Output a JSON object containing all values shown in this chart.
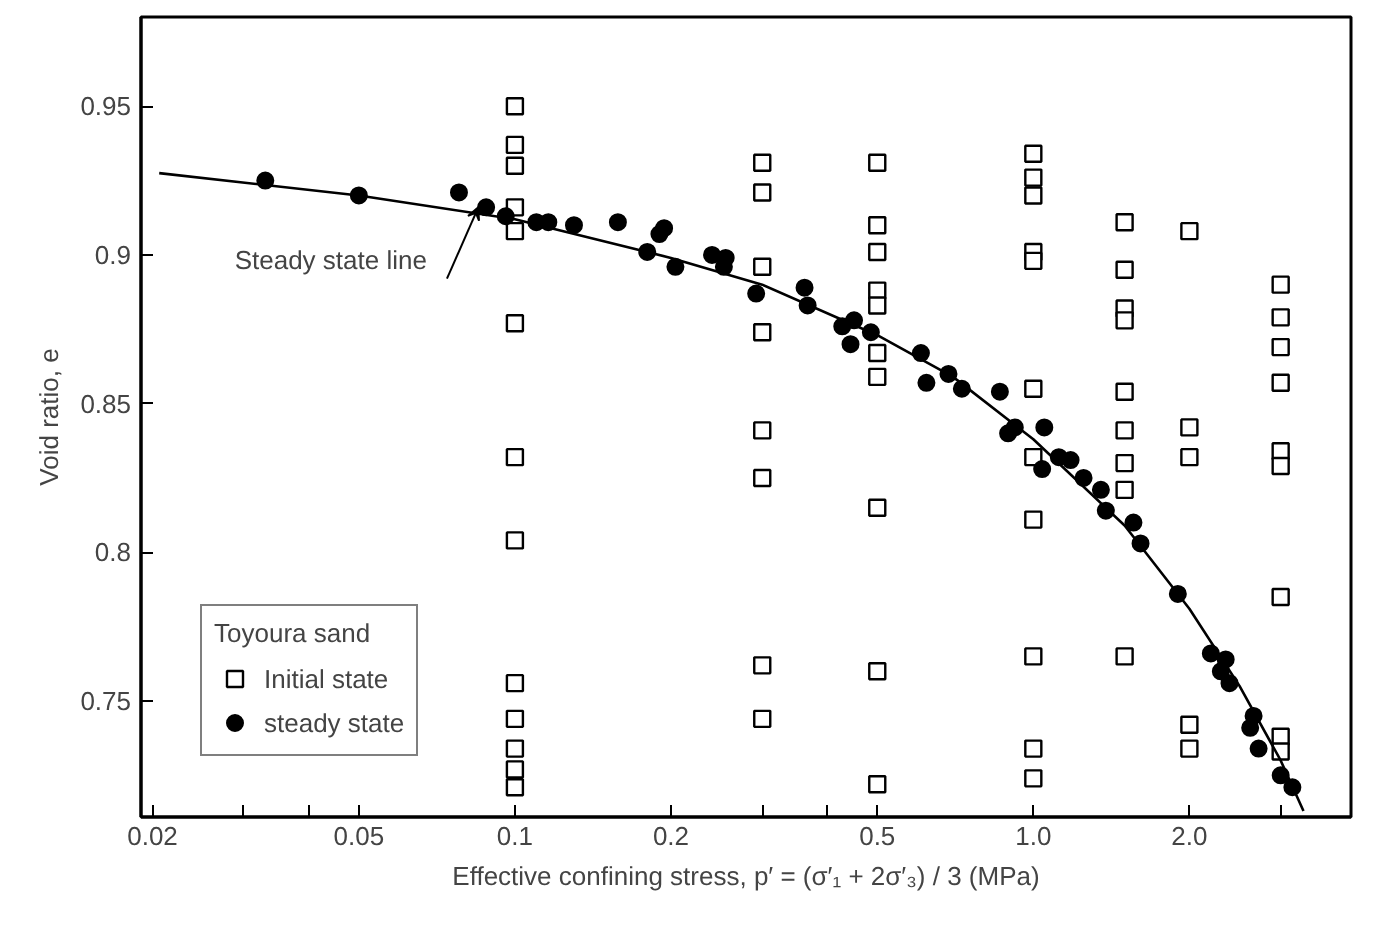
{
  "chart_data": {
    "type": "scatter",
    "xlabel": "Effective confining stress, p′ = (σ′₁ + 2σ′₃) / 3 (MPa)",
    "ylabel": "Void ratio, e",
    "legend_title": "Toyoura sand",
    "log": "x",
    "grid": false,
    "legend": "bottom left",
    "xlim": [
      0.019,
      4.1
    ],
    "ylim": [
      0.711,
      0.98
    ],
    "xticks": [
      0.02,
      {
        "value": 0.03,
        "label": null
      },
      {
        "value": 0.04,
        "label": null
      },
      0.05,
      0.1,
      0.2,
      {
        "value": 0.3,
        "label": null
      },
      {
        "value": 0.4,
        "label": null
      },
      0.5,
      {
        "value": 1,
        "label": "1.0"
      },
      {
        "value": 2,
        "label": "2.0"
      },
      {
        "value": 3,
        "label": null
      }
    ],
    "yticks": [
      0.75,
      0.8,
      0.85,
      0.9,
      0.95
    ],
    "annotations": [
      {
        "text": "Steady state line",
        "x": 0.085,
        "y": 0.916
      }
    ],
    "series": [
      {
        "name": "Initial state",
        "marker": "square",
        "color": "#000000",
        "x": [
          0.1,
          0.1,
          0.1,
          0.1,
          0.1,
          0.1,
          0.1,
          0.1,
          0.1,
          0.1,
          0.1,
          0.1,
          0.1,
          0.3,
          0.3,
          0.3,
          0.3,
          0.3,
          0.3,
          0.3,
          0.3,
          0.5,
          0.5,
          0.5,
          0.5,
          0.5,
          0.5,
          0.5,
          0.5,
          0.5,
          0.5,
          1,
          1,
          1,
          1,
          1,
          1,
          1,
          1,
          1,
          1,
          1,
          1.5,
          1.5,
          1.5,
          1.5,
          1.5,
          1.5,
          1.5,
          1.5,
          1.5,
          2,
          2,
          2,
          2,
          2,
          3,
          3,
          3,
          3,
          3,
          3,
          3,
          3,
          3
        ],
        "values": [
          0.95,
          0.937,
          0.93,
          0.916,
          0.908,
          0.877,
          0.832,
          0.804,
          0.756,
          0.744,
          0.734,
          0.727,
          0.721,
          0.931,
          0.921,
          0.896,
          0.874,
          0.841,
          0.825,
          0.762,
          0.744,
          0.931,
          0.91,
          0.901,
          0.888,
          0.883,
          0.867,
          0.859,
          0.815,
          0.76,
          0.722,
          0.934,
          0.926,
          0.92,
          0.901,
          0.898,
          0.855,
          0.832,
          0.811,
          0.765,
          0.734,
          0.724,
          0.911,
          0.895,
          0.882,
          0.878,
          0.854,
          0.841,
          0.83,
          0.821,
          0.765,
          0.908,
          0.842,
          0.832,
          0.742,
          0.734,
          0.89,
          0.879,
          0.869,
          0.857,
          0.834,
          0.829,
          0.785,
          0.738,
          0.733
        ]
      },
      {
        "name": "steady state",
        "marker": "circle",
        "color": "#000000",
        "x": [
          0.033,
          0.05,
          0.078,
          0.088,
          0.096,
          0.11,
          0.116,
          0.13,
          0.158,
          0.18,
          0.19,
          0.194,
          0.204,
          0.24,
          0.255,
          0.253,
          0.292,
          0.362,
          0.367,
          0.428,
          0.451,
          0.444,
          0.486,
          0.607,
          0.622,
          0.686,
          0.728,
          0.862,
          0.921,
          0.894,
          1.05,
          1.04,
          1.12,
          1.18,
          1.25,
          1.35,
          1.38,
          1.56,
          1.61,
          1.9,
          2.2,
          2.35,
          2.3,
          2.39,
          2.66,
          2.62,
          2.72,
          3.0,
          3.16
        ],
        "values": [
          0.925,
          0.92,
          0.921,
          0.916,
          0.913,
          0.911,
          0.911,
          0.91,
          0.911,
          0.901,
          0.907,
          0.909,
          0.896,
          0.9,
          0.899,
          0.896,
          0.887,
          0.889,
          0.883,
          0.876,
          0.878,
          0.87,
          0.874,
          0.867,
          0.857,
          0.86,
          0.855,
          0.854,
          0.842,
          0.84,
          0.842,
          0.828,
          0.832,
          0.831,
          0.825,
          0.821,
          0.814,
          0.81,
          0.803,
          0.786,
          0.766,
          0.764,
          0.76,
          0.756,
          0.745,
          0.741,
          0.734,
          0.725,
          0.721
        ]
      },
      {
        "type": "line",
        "color": "#000000",
        "line_style": "solid",
        "x": [
          0.0206,
          0.05,
          0.1,
          0.2,
          0.3,
          0.5,
          0.7,
          1.0,
          1.5,
          2.0,
          2.5,
          3.0,
          3.32
        ],
        "values": [
          0.9275,
          0.92,
          0.912,
          0.899,
          0.89,
          0.873,
          0.859,
          0.838,
          0.809,
          0.781,
          0.755,
          0.73,
          0.713
        ]
      }
    ]
  }
}
